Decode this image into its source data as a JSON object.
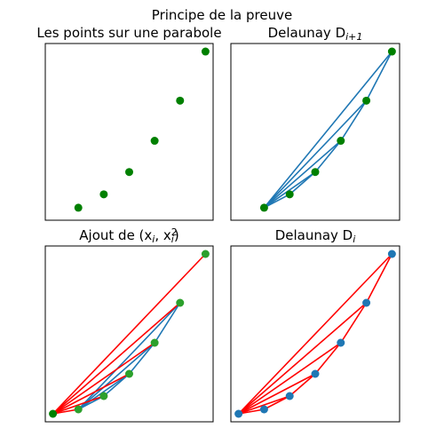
{
  "figure": {
    "suptitle": "Principe de la preuve"
  },
  "chart_data": [
    {
      "type": "scatter",
      "title": "Les points sur une parabole",
      "title_sub": "",
      "title_suffix": "",
      "axes_ticks": "none",
      "x": [
        1,
        2,
        3,
        4,
        5,
        6
      ],
      "y": [
        1,
        4,
        9,
        16,
        25,
        36
      ],
      "point_color": "#008000",
      "segments": []
    },
    {
      "type": "scatter",
      "title": "Delaunay D",
      "title_sub": "i+1",
      "title_suffix": "",
      "axes_ticks": "none",
      "x": [
        1,
        2,
        3,
        4,
        5,
        6
      ],
      "y": [
        1,
        4,
        9,
        16,
        25,
        36
      ],
      "point_color": "#008000",
      "segments": [
        {
          "color": "#1f77b4",
          "pairs": [
            [
              0,
              1
            ],
            [
              1,
              2
            ],
            [
              2,
              3
            ],
            [
              3,
              4
            ],
            [
              4,
              5
            ],
            [
              0,
              2
            ],
            [
              0,
              3
            ],
            [
              0,
              4
            ],
            [
              0,
              5
            ]
          ]
        }
      ]
    },
    {
      "type": "scatter",
      "title": "Ajout de (x",
      "title_sub": "i",
      "title_mid": ", x",
      "title_sup": "2",
      "title_sub2": "i",
      "title_suffix": ")",
      "axes_ticks": "none",
      "x": [
        1,
        2,
        3,
        4,
        5,
        6
      ],
      "y": [
        1,
        4,
        9,
        16,
        25,
        36
      ],
      "extra_point": {
        "x": 0,
        "y": 0,
        "color": "#008000"
      },
      "point_color": "#2ca02c",
      "point_edge": "#2ca02c",
      "segments": [
        {
          "color": "#1f77b4",
          "pairs": [
            [
              1,
              2
            ],
            [
              2,
              3
            ],
            [
              3,
              4
            ],
            [
              4,
              5
            ],
            [
              1,
              3
            ],
            [
              1,
              4
            ],
            [
              1,
              5
            ]
          ]
        },
        {
          "color": "#ff0000",
          "pairs": [
            [
              0,
              1
            ],
            [
              0,
              2
            ],
            [
              0,
              3
            ],
            [
              0,
              4
            ],
            [
              0,
              5
            ],
            [
              0,
              6
            ]
          ]
        }
      ]
    },
    {
      "type": "scatter",
      "title": "Delaunay D",
      "title_sub": "i",
      "title_suffix": "",
      "axes_ticks": "none",
      "x": [
        0,
        1,
        2,
        3,
        4,
        5,
        6
      ],
      "y": [
        0,
        1,
        4,
        9,
        16,
        25,
        36
      ],
      "point_color": "#1f77b4",
      "segments": [
        {
          "color": "#ff0000",
          "pairs": [
            [
              0,
              1
            ],
            [
              1,
              2
            ],
            [
              2,
              3
            ],
            [
              3,
              4
            ],
            [
              4,
              5
            ],
            [
              5,
              6
            ],
            [
              0,
              2
            ],
            [
              0,
              3
            ],
            [
              0,
              4
            ],
            [
              0,
              5
            ],
            [
              0,
              6
            ]
          ]
        }
      ]
    }
  ]
}
